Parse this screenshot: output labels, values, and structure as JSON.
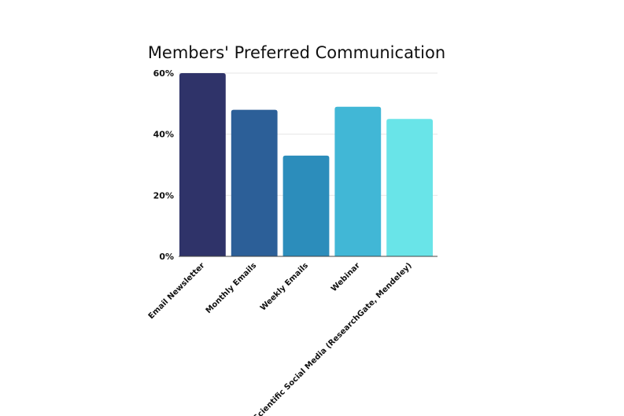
{
  "chart_data": {
    "type": "bar",
    "title": "Members' Preferred Communication",
    "xlabel": "",
    "ylabel": "",
    "categories": [
      "Email Newsletter",
      "Monthly Emails",
      "Weekly Emails",
      "Webinar",
      "Scientific Social Media (ResearchGate, Mendeley)"
    ],
    "values": [
      60,
      48,
      33,
      49,
      45
    ],
    "unit": "%",
    "ylim": [
      0,
      60
    ],
    "yticks": [
      0,
      20,
      40,
      60
    ],
    "ytick_labels": [
      "0%",
      "20%",
      "40%",
      "60%"
    ],
    "grid": true,
    "legend": "none",
    "colors": [
      "#2f3369",
      "#2c5f98",
      "#2c8dbb",
      "#41b7d6",
      "#69e4e8"
    ]
  }
}
